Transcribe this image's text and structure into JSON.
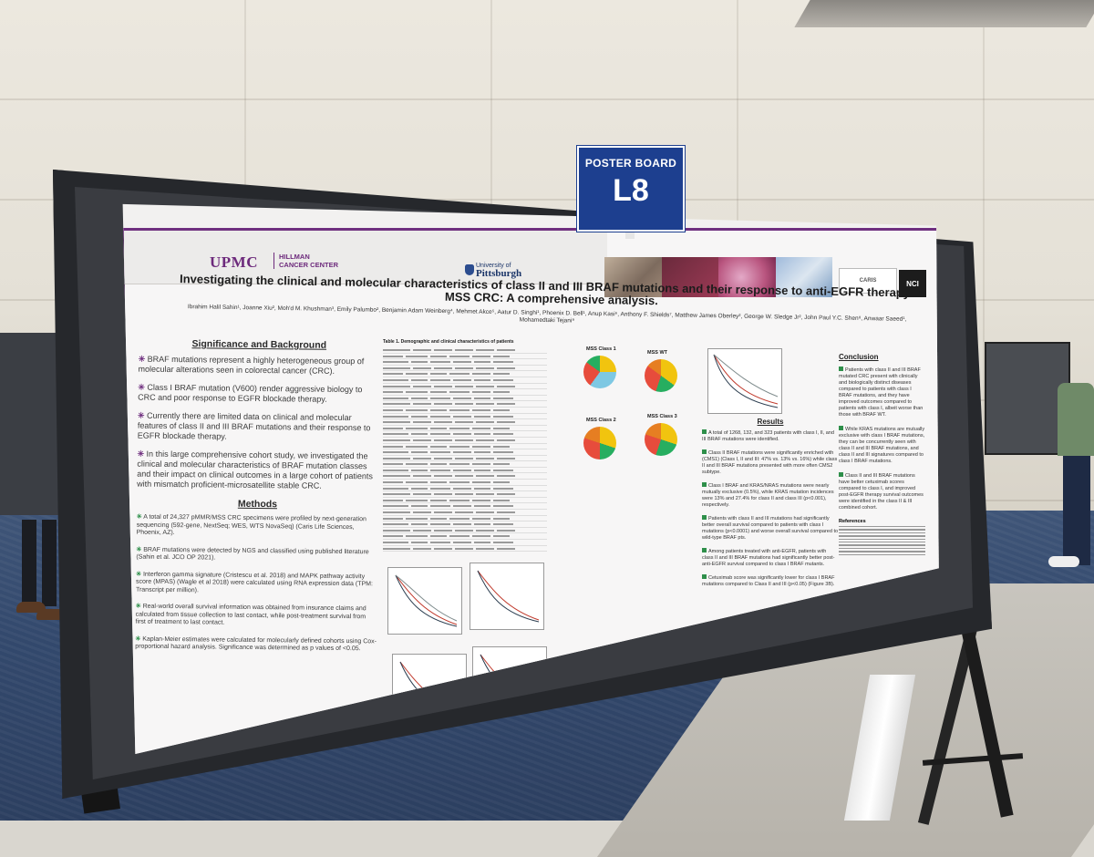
{
  "sign": {
    "title": "POSTER BOARD",
    "board_id": "L8"
  },
  "poster": {
    "header": {
      "upmc": "UPMC",
      "hillman_line1": "HILLMAN",
      "hillman_line2": "CANCER CENTER",
      "pitt_line1": "University of",
      "pitt_line2": "Pittsburgh",
      "caris": "CARIS",
      "nci": "NCI"
    },
    "title": "Investigating the clinical and molecular characteristics of class II and III BRAF mutations and their response to anti-EGFR therapy in MSS CRC: A comprehensive analysis.",
    "authors": "Ibrahim Halil Sahin¹, Joanne Xiu², Moh'd M. Khushman³, Emily Palumbo², Benjamin Adam Weinberg⁴, Mehmet Akce⁵, Aatur D. Singhi¹, Phoenix D. Bell¹, Anup Kasi⁶, Anthony F. Shields⁷, Matthew James Oberley², George W. Sledge Jr², John Paul Y.C. Shen⁸, Anwaar Saeed¹, Mohamedtaki Tejani⁹",
    "background_title": "Significance and Background",
    "background": [
      "BRAF mutations represent a highly heterogeneous group of molecular alterations seen in colorectal cancer (CRC).",
      "Class I BRAF mutation (V600) render aggressive biology to CRC and poor response to EGFR blockade therapy.",
      "Currently there are limited data on clinical and molecular features of class II and III BRAF mutations and their response to EGFR blockade therapy.",
      "In this large comprehensive cohort study, we investigated the clinical and molecular characteristics of BRAF mutation classes and their impact on clinical outcomes in a large cohort of patients with mismatch proficient-microsatellite stable CRC."
    ],
    "methods_title": "Methods",
    "methods": [
      "A total of 24,327 pMMR/MSS CRC specimens were profiled by next-generation sequencing (592-gene, NextSeq; WES, WTS NovaSeq) (Caris Life Sciences, Phoenix, AZ).",
      "BRAF mutations were detected by NGS and classified using published literature (Sahin et al. JCO OP 2021).",
      "Interferon gamma signature (Cristescu et al. 2018) and MAPK pathway activity score (MPAS) (Wagle et al 2018) were calculated using RNA expression data (TPM: Transcript per million).",
      "Real-world overall survival information was obtained from insurance claims and calculated from tissue collection to last contact, while post-treatment survival from first of treatment to last contact.",
      "Kaplan-Meier estimates were calculated for molecularly defined cohorts using Cox-proportional hazard analysis. Significance was determined as p values of <0.05."
    ],
    "table_title": "Table 1. Demographic and clinical characteristics of patients",
    "pie_labels": [
      "MSS Class 1",
      "MSS WT",
      "MSS Class 2",
      "MSS Class 3"
    ],
    "results_title": "Results",
    "results": [
      "A total of 1268, 132, and 323 patients with class I, II, and III BRAF mutations were identified.",
      "Class II BRAF mutations were significantly enriched with (CMS1) (Class I, II and III: 47% vs. 13% vs. 16%) while class II and III BRAF mutations presented with more often CMS2 subtype.",
      "Class I BRAF and KRAS/NRAS mutations were nearly mutually exclusive (0.5%), while KRAS mutation incidences were 13% and 27.4% for class II and class III (p<0.001), respectively.",
      "Patients with class II and III mutations had significantly better overall survival compared to patients with class I mutations (p<0.0001) and worse overall survival compared to wild-type BRAF pts.",
      "Among patients treated with anti-EGFR, patients with class II and III BRAF mutations had significantly better post-anti-EGFR survival compared to class I BRAF mutants.",
      "Cetuximab score was significantly lower for class I BRAF mutations compared to Class II and III (p<0.05) (Figure 3B)."
    ],
    "conclusion_title": "Conclusion",
    "conclusion": [
      "Patients with class II and III BRAF mutated CRC present with clinically and biologically distinct diseases compared to patients with class I BRAF mutations, and they have improved outcomes compared to patients with class I, albeit worse than those with BRAF WT.",
      "While KRAS mutations are mutually exclusive with class I BRAF mutations, they can be concurrently seen with class II and III BRAF mutations, and class II and III signatures compared to class I BRAF mutations.",
      "Class II and III BRAF mutations have better cetuximab scores compared to class I, and improved post-EGFR therapy survival outcomes were identified in the class II & III combined cohort."
    ],
    "references_title": "References"
  }
}
